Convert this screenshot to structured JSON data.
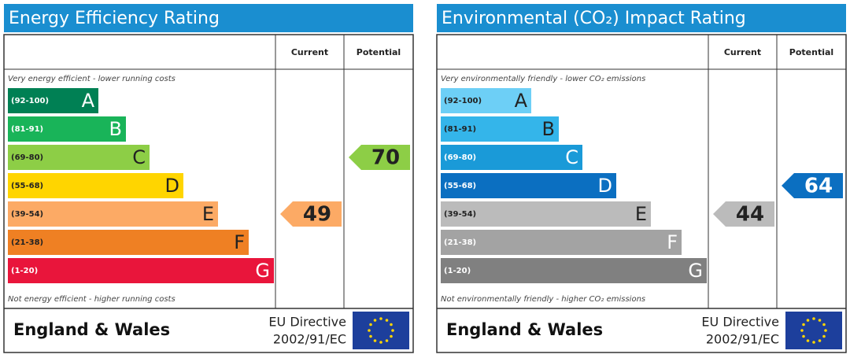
{
  "panels": [
    {
      "title": "Energy Efficiency Rating",
      "col_current": "Current",
      "col_potential": "Potential",
      "top_note": "Very energy efficient - lower running costs",
      "bottom_note": "Not energy efficient - higher running costs",
      "bands": [
        {
          "range": "(92-100)",
          "letter": "A",
          "color": "#008054",
          "text_color": "#ffffff"
        },
        {
          "range": "(81-91)",
          "letter": "B",
          "color": "#19b459",
          "text_color": "#ffffff"
        },
        {
          "range": "(69-80)",
          "letter": "C",
          "color": "#8dce46",
          "text_color": "#222222"
        },
        {
          "range": "(55-68)",
          "letter": "D",
          "color": "#ffd500",
          "text_color": "#222222"
        },
        {
          "range": "(39-54)",
          "letter": "E",
          "color": "#fcaa65",
          "text_color": "#222222"
        },
        {
          "range": "(21-38)",
          "letter": "F",
          "color": "#ef8023",
          "text_color": "#222222"
        },
        {
          "range": "(1-20)",
          "letter": "G",
          "color": "#e9153b",
          "text_color": "#ffffff"
        }
      ],
      "current": 49,
      "potential": 70,
      "region": "England & Wales",
      "directive": [
        "EU Directive",
        "2002/91/EC"
      ]
    },
    {
      "title": "Environmental (CO₂) Impact Rating",
      "col_current": "Current",
      "col_potential": "Potential",
      "top_note": "Very environmentally friendly - lower CO₂ emissions",
      "bottom_note": "Not environmentally friendly - higher CO₂ emissions",
      "bands": [
        {
          "range": "(92-100)",
          "letter": "A",
          "color": "#6dcff6",
          "text_color": "#222222"
        },
        {
          "range": "(81-91)",
          "letter": "B",
          "color": "#34b5ea",
          "text_color": "#222222"
        },
        {
          "range": "(69-80)",
          "letter": "C",
          "color": "#1a9ad8",
          "text_color": "#ffffff"
        },
        {
          "range": "(55-68)",
          "letter": "D",
          "color": "#0b6fc1",
          "text_color": "#ffffff"
        },
        {
          "range": "(39-54)",
          "letter": "E",
          "color": "#bbbbbb",
          "text_color": "#222222"
        },
        {
          "range": "(21-38)",
          "letter": "F",
          "color": "#a3a3a3",
          "text_color": "#ffffff"
        },
        {
          "range": "(1-20)",
          "letter": "G",
          "color": "#808080",
          "text_color": "#ffffff"
        }
      ],
      "current": 44,
      "potential": 64,
      "region": "England & Wales",
      "directive": [
        "EU Directive",
        "2002/91/EC"
      ]
    }
  ]
}
